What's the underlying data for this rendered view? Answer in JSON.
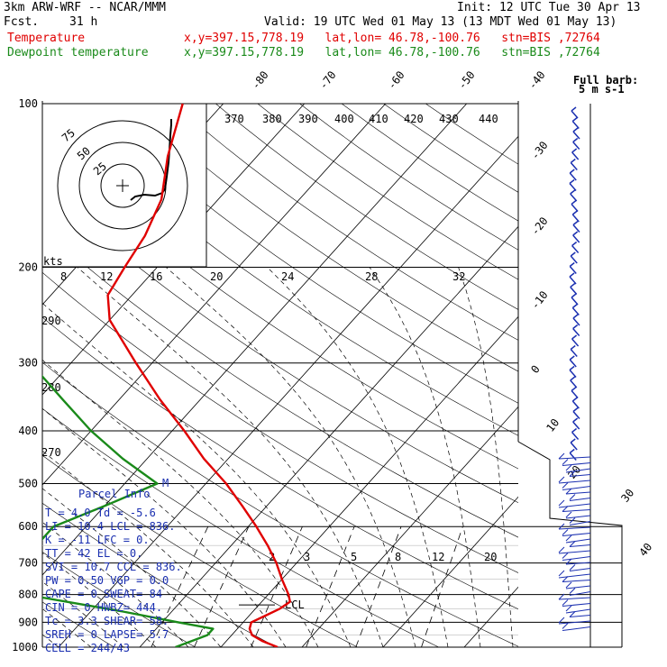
{
  "header": {
    "model": "3km ARW-WRF -- NCAR/MMM",
    "init": "Init: 12 UTC Tue 30 Apr 13",
    "fcst_label": "Fcst.",
    "fcst_value": "31 h",
    "valid": "Valid: 19 UTC Wed 01 May 13 (13 MDT Wed 01 May 13)",
    "temp_label": "Temperature",
    "temp_info": "x,y=397.15,778.19   lat,lon= 46.78,-100.76   stn=BIS ,72764",
    "dew_label": "Dewpoint temperature",
    "dew_info": "x,y=397.15,778.19   lat,lon= 46.78,-100.76   stn=BIS ,72764"
  },
  "colors": {
    "temperature": "#e00000",
    "dewpoint": "#1a8a1a",
    "parcel": "#1a2fb0",
    "barbs": "#1a2fb0"
  },
  "chart_data": {
    "type": "line",
    "title": "",
    "y_axis": {
      "label": "",
      "scale": "log-pressure",
      "ticks": [
        100,
        200,
        300,
        400,
        500,
        600,
        700,
        800,
        900,
        1000
      ]
    },
    "isotherm_labels": [
      "-80",
      "-70",
      "-60",
      "-50",
      "-40",
      "-30",
      "-20",
      "-10",
      "0",
      "10",
      "20",
      "30",
      "40"
    ],
    "theta_labels": [
      "370",
      "380",
      "390",
      "400",
      "410",
      "420",
      "430",
      "440"
    ],
    "theta_labels_left": [
      "290",
      "280",
      "270"
    ],
    "mixing_ratio_labels": [
      "2",
      "3",
      "5",
      "8",
      "12",
      "20"
    ],
    "series": [
      {
        "name": "Temperature",
        "points": [
          [
            1000,
            7
          ],
          [
            975,
            4.5
          ],
          [
            950,
            2.5
          ],
          [
            925,
            1.5
          ],
          [
            900,
            1
          ],
          [
            875,
            2
          ],
          [
            850,
            3
          ],
          [
            825,
            3.5
          ],
          [
            800,
            2.5
          ],
          [
            750,
            0
          ],
          [
            700,
            -2.5
          ],
          [
            650,
            -5.5
          ],
          [
            600,
            -9
          ],
          [
            550,
            -13
          ],
          [
            500,
            -17.5
          ],
          [
            450,
            -23
          ],
          [
            400,
            -28.5
          ],
          [
            350,
            -35
          ],
          [
            300,
            -42
          ],
          [
            250,
            -50
          ],
          [
            225,
            -53
          ],
          [
            200,
            -54
          ],
          [
            175,
            -55
          ],
          [
            150,
            -57
          ],
          [
            125,
            -61
          ],
          [
            100,
            -65
          ]
        ]
      },
      {
        "name": "Dewpoint temperature",
        "points": [
          [
            1000,
            -5.6
          ],
          [
            950,
            -3
          ],
          [
            925,
            -3
          ],
          [
            900,
            -8
          ],
          [
            860,
            -16
          ],
          [
            800,
            -30
          ],
          [
            750,
            -35
          ],
          [
            700,
            -38
          ],
          [
            650,
            -34
          ],
          [
            600,
            -34
          ],
          [
            550,
            -30
          ],
          [
            500,
            -26
          ],
          [
            450,
            -33
          ],
          [
            400,
            -40
          ],
          [
            350,
            -47
          ],
          [
            300,
            -55
          ],
          [
            270,
            -60
          ],
          [
            250,
            -62
          ],
          [
            225,
            -63
          ],
          [
            200,
            -65
          ],
          [
            175,
            -70
          ],
          [
            150,
            -76
          ],
          [
            125,
            -82
          ],
          [
            100,
            -88
          ]
        ]
      }
    ],
    "hodograph": {
      "speed_rings": [
        "25",
        "50",
        "75"
      ],
      "ring_units": "kts"
    },
    "wind_scale_label": "Full barb: 5 m s-1",
    "parcel_label": "Parcel Info",
    "lcl_label": "LCL",
    "pressure_markers": [
      "M"
    ]
  },
  "parcel_info": {
    "rows": [
      "T  =    4.0  Td =  -5.6",
      "LI =   10.4  LCL =  836.",
      "K  =    -11  LFC =    0.",
      "TT =     42  EL  =    0.",
      "SVI =  10.7  CCL =  836.",
      "PW =   0.50  VGP =   0.0",
      "CAPE =    0  SWEAT=   84",
      "CIN =     0  HWBZ=  444.",
      "Tc =    3.3  SHEAR=  58.",
      "SREH =    0  LAPSE=  5.7",
      "CELL = 244/43"
    ]
  }
}
